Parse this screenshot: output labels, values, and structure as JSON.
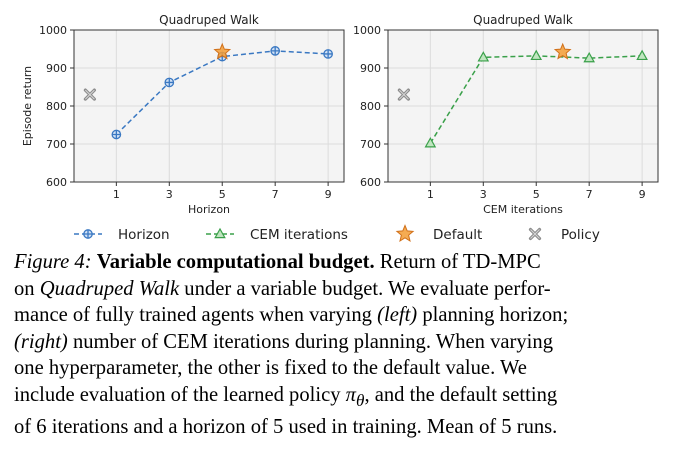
{
  "colors": {
    "horizon": "#3a78c2",
    "cem": "#3aa04a",
    "default_fill": "#f39c34",
    "default_edge": "#d0701a",
    "policy": "#8c8c8c",
    "panel_bg": "#f4f4f4",
    "grid": "#dcdcdc"
  },
  "chart_data": [
    {
      "type": "line",
      "title": "Quadruped Walk",
      "xlabel": "Horizon",
      "ylabel": "Episode return",
      "xlim": [
        -0.6,
        9.6
      ],
      "ylim": [
        600,
        1000
      ],
      "xticks": [
        1,
        3,
        5,
        7,
        9
      ],
      "yticks": [
        600,
        700,
        800,
        900,
        1000
      ],
      "grid": true,
      "series": [
        {
          "name": "Horizon",
          "x": [
            1,
            3,
            5,
            7,
            9
          ],
          "values": [
            725,
            862,
            930,
            945,
            937
          ]
        }
      ],
      "default_point": {
        "name": "Default",
        "x": 5,
        "y": 942
      },
      "policy_point": {
        "name": "Policy",
        "x": 0,
        "y": 830
      }
    },
    {
      "type": "line",
      "title": "Quadruped Walk",
      "xlabel": "CEM iterations",
      "ylabel": "",
      "xlim": [
        -0.6,
        9.6
      ],
      "ylim": [
        600,
        1000
      ],
      "xticks": [
        1,
        3,
        5,
        7,
        9
      ],
      "yticks": [
        600,
        700,
        800,
        900,
        1000
      ],
      "grid": true,
      "series": [
        {
          "name": "CEM iterations",
          "x": [
            1,
            3,
            5,
            7,
            9
          ],
          "values": [
            702,
            928,
            932,
            926,
            932
          ]
        }
      ],
      "default_point": {
        "name": "Default",
        "x": 6,
        "y": 942
      },
      "policy_point": {
        "name": "Policy",
        "x": 0,
        "y": 830
      }
    }
  ],
  "legend": [
    {
      "label": "Horizon",
      "kind": "horizon"
    },
    {
      "label": "CEM iterations",
      "kind": "cem"
    },
    {
      "label": "Default",
      "kind": "default"
    },
    {
      "label": "Policy",
      "kind": "policy"
    }
  ],
  "caption": {
    "figure_label": "Figure 4:",
    "title": "Variable computational budget.",
    "l1_rest": "Return of TD-MPC",
    "l2_on": "on",
    "l2_task": "Quadruped Walk",
    "l2_rest": "under a variable budget. We evaluate perfor-",
    "l3_a": "mance of fully trained agents when varying",
    "l3_left": "(left)",
    "l3_b": "planning horizon;",
    "l4_right": "(right)",
    "l4_rest": "number of CEM iterations during planning. When varying",
    "l5": "one hyperparameter, the other is fixed to the default value.  We",
    "l6_a": "include evaluation of the learned policy",
    "l6_pi": "π",
    "l6_theta": "θ",
    "l6_b": ", and the default setting",
    "l7": "of 6 iterations and a horizon of 5 used in training. Mean of 5 runs."
  }
}
